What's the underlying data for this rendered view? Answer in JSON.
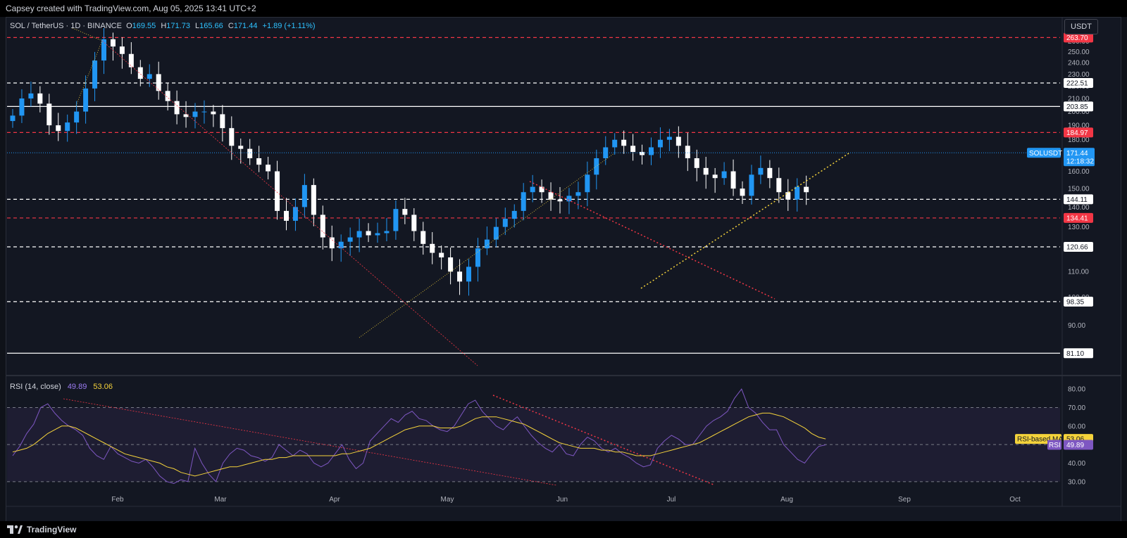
{
  "header": {
    "caption": "Capsey created with TradingView.com, Aug 05, 2025 13:41 UTC+2"
  },
  "legend": {
    "symbol": "SOL / TetherUS · 1D · BINANCE",
    "open_label": "O",
    "open": "169.55",
    "high_label": "H",
    "high": "171.73",
    "low_label": "L",
    "low": "165.66",
    "close_label": "C",
    "close": "171.44",
    "change": "+1.89 (+1.11%)"
  },
  "currency_button": "USDT",
  "rsi_legend": {
    "name": "RSI (14, close)",
    "rsi": "49.89",
    "ma": "53.06"
  },
  "footer": {
    "brand": "TradingView"
  },
  "colors": {
    "up": "#2196f3",
    "down": "#ffffff",
    "red_level": "#f23645",
    "rsi": "#7e57c2",
    "rsi_ma": "#f5d33b",
    "bg": "#131722"
  },
  "chart_data": [
    {
      "type": "candlestick",
      "symbol": "SOL / TetherUS",
      "interval": "1D",
      "x_tick_labels": [
        "Feb",
        "Mar",
        "Apr",
        "May",
        "Jun",
        "Jul",
        "Aug",
        "Sep",
        "Oct"
      ],
      "y_ticks": [
        90,
        100,
        110,
        120,
        130,
        140,
        150,
        160,
        170,
        180,
        190,
        200,
        210,
        220,
        230,
        240,
        250,
        260,
        270
      ],
      "ylim": [
        76,
        276
      ],
      "y_scale": "log",
      "price_tags": [
        {
          "label": "263.70",
          "value": 263.7,
          "color": "red",
          "style": "dashed"
        },
        {
          "label": "222.51",
          "value": 222.51,
          "color": "white",
          "style": "dashed"
        },
        {
          "label": "203.85",
          "value": 203.85,
          "color": "white",
          "style": "solid"
        },
        {
          "label": "184.97",
          "value": 184.97,
          "color": "red",
          "style": "dashed"
        },
        {
          "label": "144.11",
          "value": 144.11,
          "color": "white",
          "style": "dashed"
        },
        {
          "label": "134.41",
          "value": 134.41,
          "color": "red",
          "style": "dashed"
        },
        {
          "label": "120.66",
          "value": 120.66,
          "color": "white",
          "style": "dashed"
        },
        {
          "label": "98.35",
          "value": 98.35,
          "color": "white",
          "style": "dashed"
        },
        {
          "label": "81.10",
          "value": 81.1,
          "color": "white",
          "style": "solid"
        }
      ],
      "last_price": {
        "symbol": "SOLUSDT",
        "price": "171.44",
        "countdown": "12:18:32",
        "value": 171.44
      },
      "close_series": [
        197,
        210,
        214,
        206,
        190,
        186,
        192,
        200,
        218,
        242,
        262,
        255,
        248,
        236,
        226,
        230,
        216,
        208,
        198,
        196,
        200,
        200,
        198,
        188,
        176,
        174,
        168,
        164,
        160,
        138,
        133,
        140,
        152,
        136,
        125,
        120,
        123,
        125,
        128,
        126,
        127,
        128,
        139,
        136,
        128,
        122,
        118,
        116,
        110,
        106,
        112,
        120,
        124,
        130,
        134,
        138,
        148,
        151,
        148,
        144,
        143,
        146,
        148,
        158,
        168,
        175,
        180,
        176,
        172,
        170,
        175,
        180,
        182,
        176,
        168,
        162,
        158,
        156,
        160,
        150,
        146,
        158,
        162,
        156,
        148,
        144,
        151,
        148,
        144,
        140,
        138,
        136,
        146,
        150,
        152,
        150,
        148,
        148,
        154,
        160,
        162,
        164,
        168,
        182,
        190,
        198,
        206,
        188,
        184,
        186,
        178,
        180,
        174,
        164,
        160,
        167,
        171.44
      ]
    },
    {
      "type": "line",
      "title": "RSI (14, close)",
      "ylim": [
        25,
        85
      ],
      "y_ticks": [
        30,
        40,
        50,
        60,
        70,
        80
      ],
      "bands": [
        30,
        50,
        70
      ],
      "series": [
        {
          "name": "RSI",
          "last": "49.89",
          "last_value": 49.89,
          "values": [
            44,
            49,
            56,
            61,
            70,
            72,
            67,
            63,
            60,
            58,
            55,
            48,
            44,
            42,
            49,
            45,
            43,
            41,
            40,
            42,
            38,
            33,
            30,
            29,
            31,
            30,
            48,
            40,
            34,
            30,
            40,
            45,
            48,
            47,
            44,
            43,
            41,
            43,
            50,
            47,
            44,
            47,
            45,
            40,
            38,
            40,
            45,
            50,
            42,
            37,
            40,
            52,
            56,
            60,
            64,
            62,
            66,
            68,
            64,
            63,
            60,
            58,
            57,
            60,
            66,
            72,
            74,
            68,
            64,
            60,
            58,
            62,
            65,
            60,
            55,
            51,
            48,
            46,
            50,
            45,
            44,
            50,
            54,
            52,
            48,
            46,
            48,
            45,
            43,
            40,
            38,
            39,
            48,
            52,
            55,
            53,
            50,
            50,
            55,
            60,
            63,
            65,
            68,
            75,
            80,
            70,
            67,
            62,
            58,
            58,
            50,
            46,
            42,
            40,
            45,
            49,
            49.89
          ]
        },
        {
          "name": "RSI-based MA",
          "last": "53.06",
          "last_value": 53.06,
          "values": [
            46,
            47,
            48,
            50,
            53,
            56,
            58,
            60,
            60,
            59,
            57,
            55,
            53,
            51,
            49,
            47,
            45,
            44,
            43,
            42,
            41,
            40,
            38,
            37,
            35,
            34,
            33,
            34,
            35,
            36,
            37,
            38,
            38,
            39,
            40,
            41,
            42,
            42,
            43,
            43,
            44,
            44,
            44,
            44,
            44,
            44,
            44,
            45,
            45,
            46,
            47,
            48,
            50,
            52,
            54,
            56,
            58,
            59,
            60,
            60,
            60,
            59,
            59,
            59,
            60,
            62,
            64,
            65,
            65,
            65,
            64,
            63,
            62,
            61,
            59,
            57,
            55,
            53,
            51,
            50,
            49,
            48,
            48,
            48,
            47,
            47,
            46,
            46,
            45,
            44,
            44,
            44,
            45,
            46,
            47,
            48,
            49,
            50,
            51,
            53,
            55,
            57,
            59,
            61,
            63,
            65,
            66,
            67,
            67,
            66,
            65,
            63,
            61,
            59,
            56,
            54,
            53.06
          ]
        }
      ]
    }
  ]
}
